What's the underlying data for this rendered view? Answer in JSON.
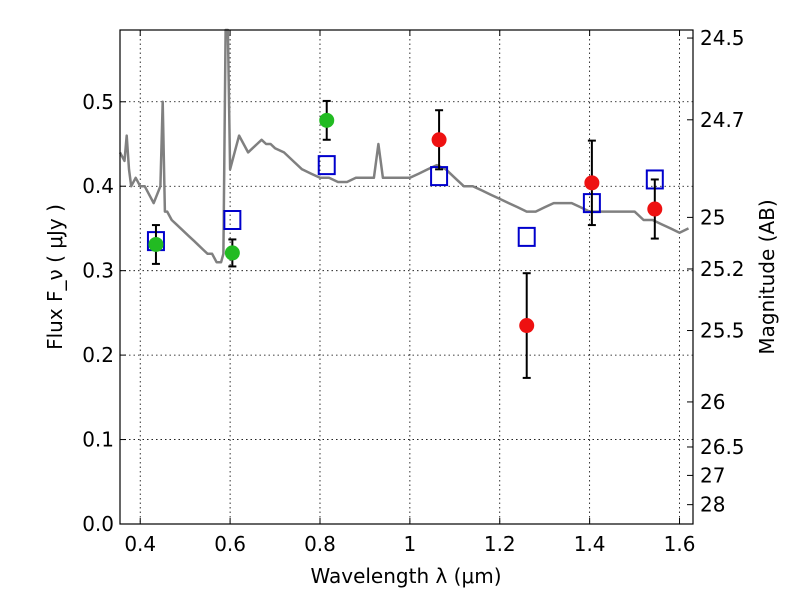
{
  "chart_data": {
    "type": "scatter",
    "xlabel": "Wavelength  λ (μm)",
    "ylabel": "Flux  F_ν  ( μJy )",
    "ylabel_right": "Magnitude (AB)",
    "xlim": [
      0.355,
      1.63
    ],
    "ylim": [
      0.0,
      0.585
    ],
    "grid": true,
    "x_ticks": [
      0.4,
      0.6,
      0.8,
      1.0,
      1.2,
      1.4,
      1.6
    ],
    "x_tick_labels": [
      "0.4",
      "0.6",
      "0.8",
      "1",
      "1.2",
      "1.4",
      "1.6"
    ],
    "y_ticks": [
      0.0,
      0.1,
      0.2,
      0.3,
      0.4,
      0.5
    ],
    "y_tick_labels": [
      "0.0",
      "0.1",
      "0.2",
      "0.3",
      "0.4",
      "0.5"
    ],
    "mag_ticks": [
      24.5,
      24.7,
      25,
      25.2,
      25.5,
      26,
      26.5,
      27,
      28
    ],
    "mag_tick_labels": [
      "24.5",
      "24.7",
      "25",
      "25.2",
      "25.5",
      "26",
      "26.5",
      "27",
      "28"
    ],
    "series": [
      {
        "kind": "line",
        "color": "#808080",
        "x": [
          0.355,
          0.365,
          0.37,
          0.375,
          0.38,
          0.39,
          0.4,
          0.41,
          0.42,
          0.43,
          0.445,
          0.45,
          0.455,
          0.46,
          0.47,
          0.48,
          0.49,
          0.5,
          0.51,
          0.52,
          0.53,
          0.54,
          0.55,
          0.56,
          0.57,
          0.58,
          0.585,
          0.59,
          0.595,
          0.6,
          0.61,
          0.62,
          0.63,
          0.64,
          0.65,
          0.66,
          0.67,
          0.68,
          0.69,
          0.7,
          0.72,
          0.74,
          0.76,
          0.78,
          0.8,
          0.82,
          0.84,
          0.86,
          0.88,
          0.9,
          0.92,
          0.93,
          0.94,
          0.96,
          0.98,
          1.0,
          1.02,
          1.04,
          1.06,
          1.08,
          1.1,
          1.12,
          1.14,
          1.16,
          1.18,
          1.2,
          1.22,
          1.24,
          1.26,
          1.28,
          1.3,
          1.32,
          1.34,
          1.36,
          1.38,
          1.4,
          1.42,
          1.44,
          1.46,
          1.48,
          1.5,
          1.52,
          1.54,
          1.56,
          1.58,
          1.6,
          1.62
        ],
        "y": [
          0.44,
          0.43,
          0.46,
          0.42,
          0.4,
          0.41,
          0.4,
          0.4,
          0.39,
          0.38,
          0.4,
          0.5,
          0.37,
          0.37,
          0.36,
          0.355,
          0.35,
          0.345,
          0.34,
          0.335,
          0.33,
          0.325,
          0.32,
          0.32,
          0.31,
          0.31,
          0.32,
          0.585,
          0.585,
          0.42,
          0.44,
          0.46,
          0.45,
          0.44,
          0.445,
          0.45,
          0.455,
          0.45,
          0.45,
          0.445,
          0.44,
          0.43,
          0.42,
          0.415,
          0.41,
          0.41,
          0.405,
          0.405,
          0.41,
          0.41,
          0.41,
          0.45,
          0.41,
          0.41,
          0.41,
          0.41,
          0.415,
          0.42,
          0.425,
          0.42,
          0.41,
          0.4,
          0.4,
          0.395,
          0.39,
          0.385,
          0.38,
          0.375,
          0.37,
          0.37,
          0.375,
          0.38,
          0.38,
          0.38,
          0.375,
          0.37,
          0.37,
          0.37,
          0.37,
          0.37,
          0.37,
          0.36,
          0.36,
          0.355,
          0.35,
          0.345,
          0.35
        ]
      },
      {
        "kind": "squares",
        "color": "#0000cc",
        "x": [
          0.435,
          0.605,
          0.815,
          1.065,
          1.26,
          1.405,
          1.545
        ],
        "y": [
          0.335,
          0.36,
          0.425,
          0.412,
          0.34,
          0.38,
          0.408
        ]
      },
      {
        "kind": "circles",
        "color": "#22bb22",
        "x": [
          0.435,
          0.605,
          0.815
        ],
        "y": [
          0.331,
          0.321,
          0.478
        ],
        "yerr": [
          0.023,
          0.016,
          0.023
        ]
      },
      {
        "kind": "circles",
        "color": "#ee1111",
        "x": [
          1.065,
          1.26,
          1.405,
          1.545
        ],
        "y": [
          0.455,
          0.235,
          0.404,
          0.373
        ],
        "yerr": [
          0.035,
          0.062,
          0.05,
          0.035
        ]
      }
    ]
  }
}
